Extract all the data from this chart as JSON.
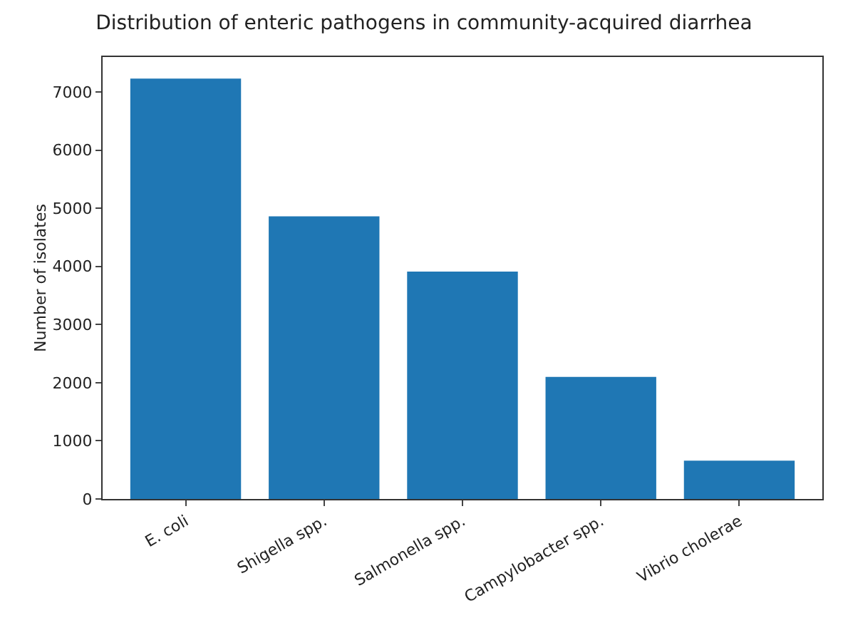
{
  "chart_data": {
    "type": "bar",
    "title": "Distribution of enteric pathogens in community-acquired diarrhea",
    "ylabel": "Number of isolates",
    "categories": [
      "E. coli",
      "Shigella spp.",
      "Salmonella spp.",
      "Campylobacter spp.",
      "Vibrio cholerae"
    ],
    "values": [
      7230,
      4860,
      3910,
      2100,
      660
    ],
    "color": "#1f77b4",
    "ylim": [
      0,
      7600
    ],
    "yticks": [
      0,
      1000,
      2000,
      3000,
      4000,
      5000,
      6000,
      7000
    ],
    "grid": false,
    "legend": false
  }
}
